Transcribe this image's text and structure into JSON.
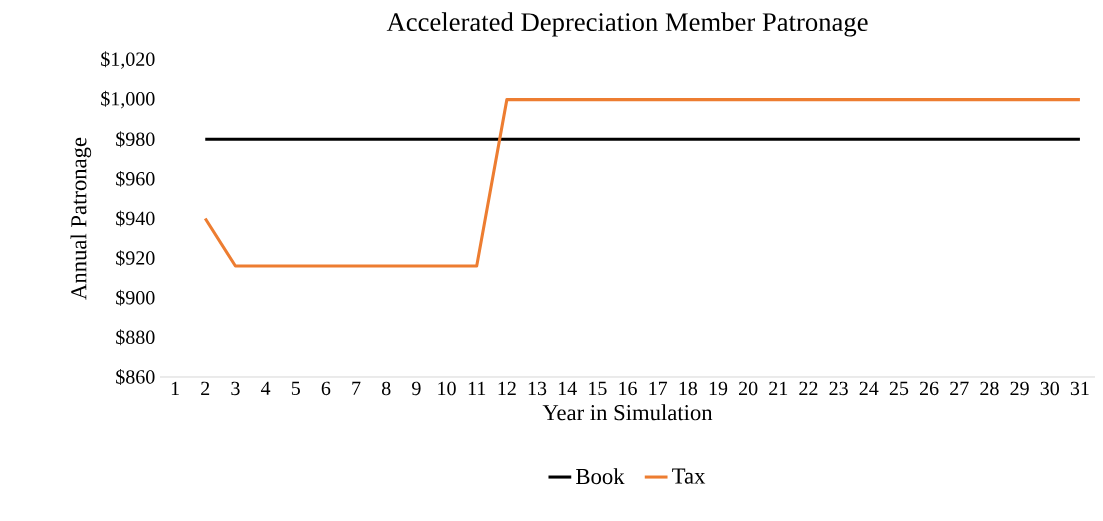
{
  "chart_data": {
    "type": "line",
    "title": "Accelerated Depreciation Member Patronage",
    "xlabel": "Year in Simulation",
    "ylabel": "Annual Patronage",
    "categories": [
      "1",
      "2",
      "3",
      "4",
      "5",
      "6",
      "7",
      "8",
      "9",
      "10",
      "11",
      "12",
      "13",
      "14",
      "15",
      "16",
      "17",
      "18",
      "19",
      "20",
      "21",
      "22",
      "23",
      "24",
      "25",
      "26",
      "27",
      "28",
      "29",
      "30",
      "31"
    ],
    "series": [
      {
        "name": "Book",
        "color": "#000000",
        "values": [
          null,
          980,
          980,
          980,
          980,
          980,
          980,
          980,
          980,
          980,
          980,
          980,
          980,
          980,
          980,
          980,
          980,
          980,
          980,
          980,
          980,
          980,
          980,
          980,
          980,
          980,
          980,
          980,
          980,
          980,
          980
        ]
      },
      {
        "name": "Tax",
        "color": "#ed7d31",
        "values": [
          null,
          940,
          916,
          916,
          916,
          916,
          916,
          916,
          916,
          916,
          916,
          1000,
          1000,
          1000,
          1000,
          1000,
          1000,
          1000,
          1000,
          1000,
          1000,
          1000,
          1000,
          1000,
          1000,
          1000,
          1000,
          1000,
          1000,
          1000,
          1000
        ]
      }
    ],
    "ylim": [
      860,
      1020
    ],
    "yticks": [
      {
        "value": 860,
        "label": "$860"
      },
      {
        "value": 880,
        "label": "$880"
      },
      {
        "value": 900,
        "label": "$900"
      },
      {
        "value": 920,
        "label": "$920"
      },
      {
        "value": 940,
        "label": "$940"
      },
      {
        "value": 960,
        "label": "$960"
      },
      {
        "value": 980,
        "label": "$980"
      },
      {
        "value": 1000,
        "label": "$1,000"
      },
      {
        "value": 1020,
        "label": "$1,020"
      }
    ],
    "legend": "bottom"
  }
}
